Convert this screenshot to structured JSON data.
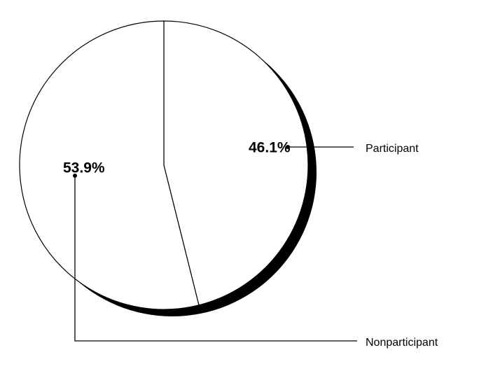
{
  "chart_data": {
    "type": "pie",
    "categories": [
      "Participant",
      "Nonparticipant"
    ],
    "values": [
      46.1,
      53.9
    ],
    "value_labels": [
      "46.1%",
      "53.9%"
    ],
    "colors": [
      "#ffffff",
      "#ffffff"
    ]
  }
}
